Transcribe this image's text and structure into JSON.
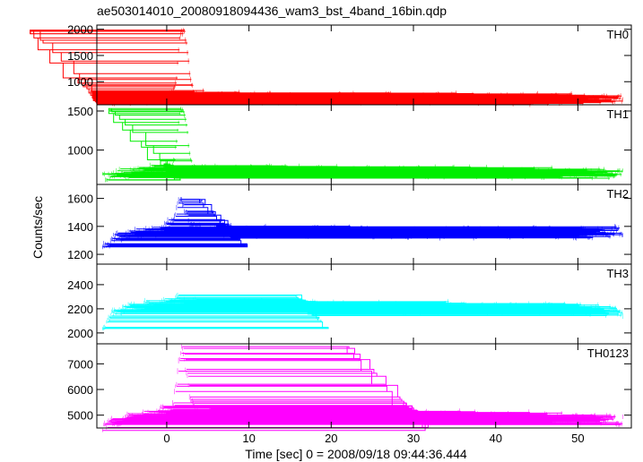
{
  "chart_data": {
    "type": "line",
    "title": "ae503014010_20080918094436_wam3_bst_4band_16bin.qdp",
    "xlabel": "Time [sec] 0 = 2008/09/18 09:44:36.444",
    "ylabel": "Counts/sec",
    "xlim": [
      -8.5,
      56.5
    ],
    "xticks": [
      0,
      10,
      20,
      30,
      40,
      50
    ],
    "grid": false,
    "panels": [
      {
        "name": "TH0",
        "color": "#ff0000",
        "ylim": [
          560,
          2080
        ],
        "yticks": [
          500,
          1000,
          1500,
          2000
        ],
        "points": [
          [
            -7.8,
            620
          ],
          [
            -6,
            660
          ],
          [
            -4,
            680
          ],
          [
            -2,
            690
          ],
          [
            -0.5,
            720
          ],
          [
            0.8,
            780
          ],
          [
            1.2,
            1150
          ],
          [
            1.5,
            1850
          ],
          [
            1.8,
            2000
          ],
          [
            2.1,
            1950
          ],
          [
            2.5,
            1550
          ],
          [
            2.8,
            1050
          ],
          [
            3.3,
            780
          ],
          [
            5,
            710
          ],
          [
            10,
            700
          ],
          [
            15,
            680
          ],
          [
            20,
            690
          ],
          [
            25,
            690
          ],
          [
            30,
            680
          ],
          [
            35,
            690
          ],
          [
            40,
            680
          ],
          [
            45,
            670
          ],
          [
            50,
            670
          ],
          [
            55.5,
            650
          ]
        ]
      },
      {
        "name": "TH1",
        "color": "#00ee00",
        "ylim": [
          560,
          1580
        ],
        "yticks": [
          1000,
          1500
        ],
        "points": [
          [
            -7.8,
            650
          ],
          [
            -6,
            700
          ],
          [
            -4,
            720
          ],
          [
            -2,
            740
          ],
          [
            -0.5,
            760
          ],
          [
            0.8,
            820
          ],
          [
            1.2,
            1100
          ],
          [
            1.5,
            1450
          ],
          [
            1.8,
            1530
          ],
          [
            2.1,
            1480
          ],
          [
            2.5,
            1250
          ],
          [
            2.8,
            900
          ],
          [
            3.3,
            780
          ],
          [
            5,
            740
          ],
          [
            10,
            730
          ],
          [
            15,
            740
          ],
          [
            20,
            730
          ],
          [
            25,
            720
          ],
          [
            30,
            720
          ],
          [
            35,
            720
          ],
          [
            40,
            710
          ],
          [
            45,
            700
          ],
          [
            50,
            710
          ],
          [
            55.5,
            700
          ]
        ]
      },
      {
        "name": "TH2",
        "color": "#0000ff",
        "ylim": [
          1130,
          1700
        ],
        "yticks": [
          1200,
          1400,
          1600
        ],
        "points": [
          [
            -7.8,
            1250
          ],
          [
            -6,
            1330
          ],
          [
            -4,
            1350
          ],
          [
            -2,
            1360
          ],
          [
            -0.5,
            1380
          ],
          [
            0.8,
            1450
          ],
          [
            1.5,
            1600
          ],
          [
            2,
            1550
          ],
          [
            2.8,
            1420
          ],
          [
            5,
            1370
          ],
          [
            10,
            1370
          ],
          [
            15,
            1360
          ],
          [
            20,
            1370
          ],
          [
            25,
            1360
          ],
          [
            30,
            1350
          ],
          [
            35,
            1360
          ],
          [
            40,
            1350
          ],
          [
            45,
            1360
          ],
          [
            50,
            1350
          ],
          [
            55.5,
            1360
          ]
        ]
      },
      {
        "name": "TH3",
        "color": "#00ffff",
        "ylim": [
          1910,
          2570
        ],
        "yticks": [
          2000,
          2200,
          2400
        ],
        "points": [
          [
            -7.8,
            2050
          ],
          [
            -6,
            2200
          ],
          [
            -4,
            2220
          ],
          [
            -2,
            2230
          ],
          [
            -0.5,
            2240
          ],
          [
            1,
            2280
          ],
          [
            2,
            2260
          ],
          [
            3,
            2240
          ],
          [
            5,
            2230
          ],
          [
            10,
            2230
          ],
          [
            15,
            2220
          ],
          [
            20,
            2230
          ],
          [
            25,
            2220
          ],
          [
            30,
            2200
          ],
          [
            35,
            2220
          ],
          [
            40,
            2200
          ],
          [
            45,
            2210
          ],
          [
            50,
            2200
          ],
          [
            55.5,
            2180
          ]
        ]
      },
      {
        "name": "TH0123",
        "color": "#ff00ff",
        "ylim": [
          4500,
          7780
        ],
        "yticks": [
          5000,
          6000,
          7000
        ],
        "points": [
          [
            -7.8,
            4550
          ],
          [
            -6,
            4800
          ],
          [
            -4,
            4900
          ],
          [
            -2,
            5000
          ],
          [
            -0.5,
            5150
          ],
          [
            0.8,
            5400
          ],
          [
            1.2,
            6200
          ],
          [
            1.5,
            7200
          ],
          [
            1.8,
            7600
          ],
          [
            2.1,
            7400
          ],
          [
            2.5,
            6500
          ],
          [
            2.8,
            5600
          ],
          [
            3.3,
            5200
          ],
          [
            5,
            5050
          ],
          [
            10,
            5000
          ],
          [
            15,
            4980
          ],
          [
            20,
            4990
          ],
          [
            25,
            4970
          ],
          [
            30,
            4950
          ],
          [
            35,
            4950
          ],
          [
            40,
            4930
          ],
          [
            45,
            4900
          ],
          [
            50,
            4880
          ],
          [
            55.5,
            4820
          ]
        ]
      }
    ]
  }
}
